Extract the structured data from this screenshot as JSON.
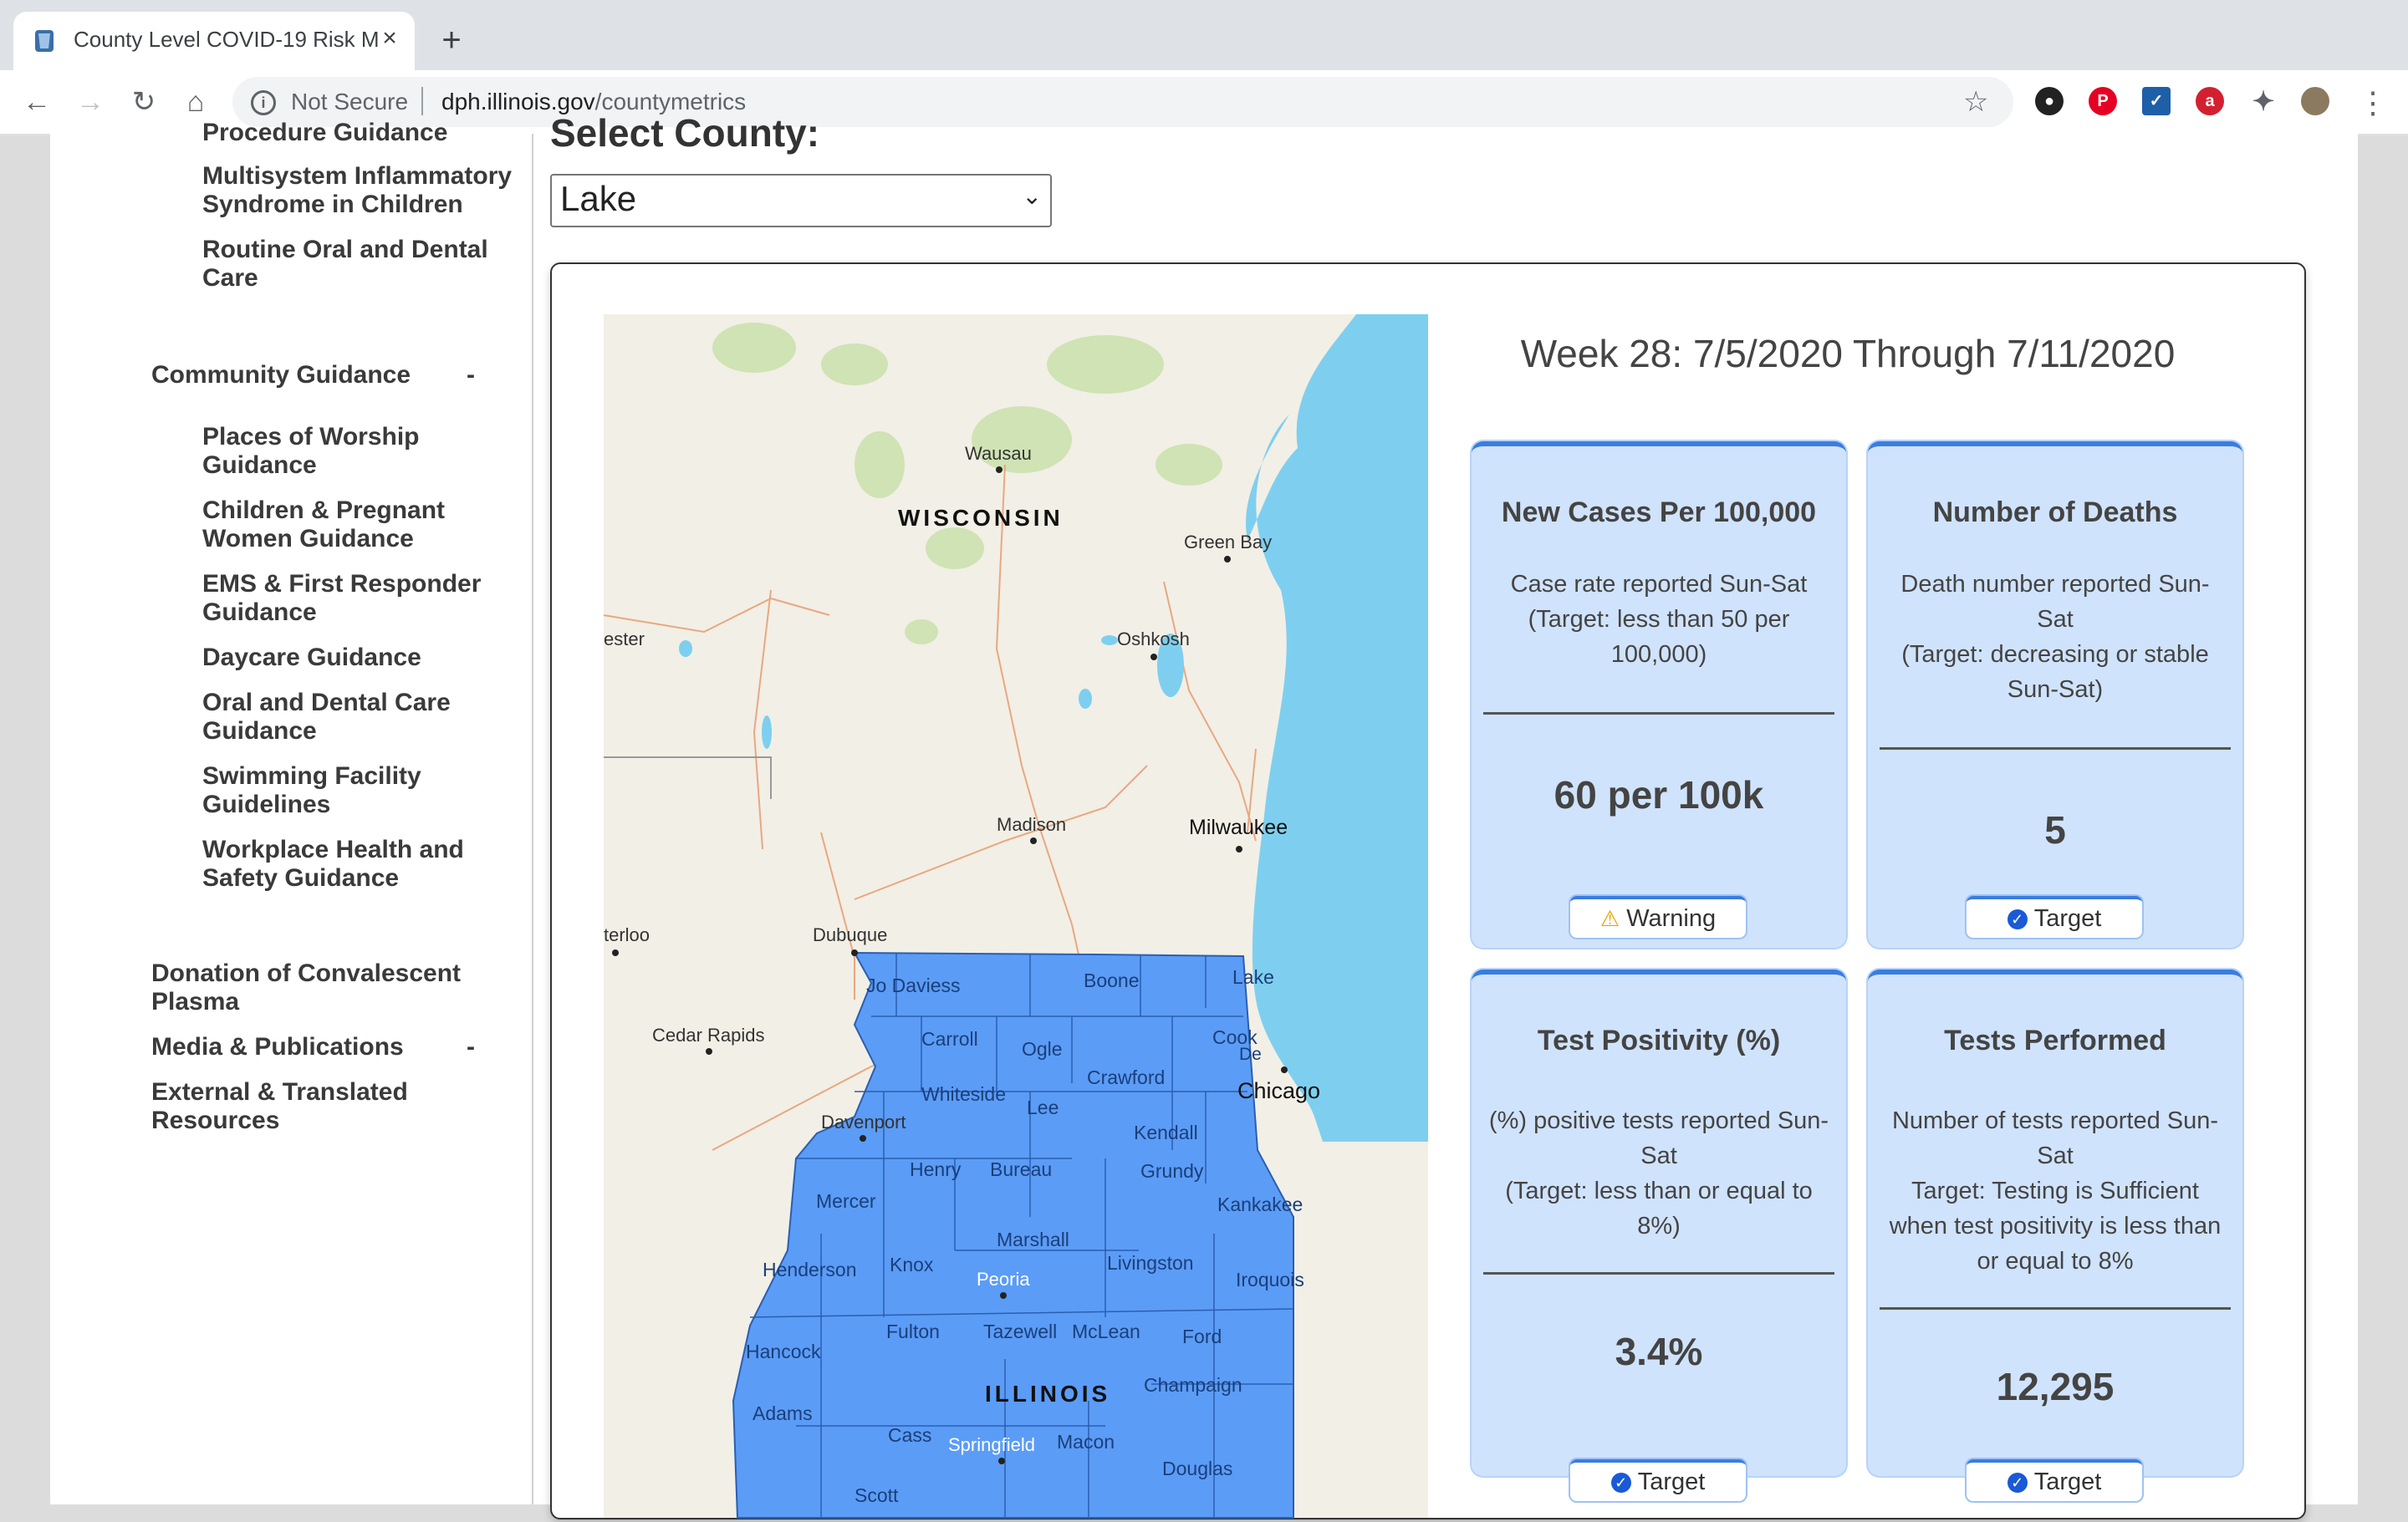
{
  "browser": {
    "tab_title": "County Level COVID-19 Risk M",
    "not_secure": "Not Secure",
    "url_host": "dph.illinois.gov",
    "url_path": "/countymetrics"
  },
  "sidebar": {
    "partial_top": "Procedure Guidance",
    "items_top": [
      "Multisystem Inflammatory Syndrome in Children",
      "Routine Oral and Dental Care"
    ],
    "community": {
      "label": "Community Guidance",
      "toggle": "-"
    },
    "community_items": [
      "Places of Worship Guidance",
      "Children & Pregnant Women Guidance",
      "EMS & First Responder Guidance",
      "Daycare Guidance",
      "Oral and Dental Care Guidance",
      "Swimming Facility Guidelines",
      "Workplace Health and Safety Guidance"
    ],
    "plasma": "Donation of Convalescent Plasma",
    "media": {
      "label": "Media & Publications",
      "toggle": "-"
    },
    "external": "External & Translated Resources"
  },
  "content": {
    "select_label": "Select County:",
    "selected_county": "Lake",
    "week_title": "Week 28: 7/5/2020 Through 7/11/2020"
  },
  "map": {
    "state_labels": [
      "WISCONSIN",
      "ILLINOIS"
    ],
    "cities": [
      "Wausau",
      "Green Bay",
      "Oshkosh",
      "Madison",
      "Milwaukee",
      "Dubuque",
      "Cedar Rapids",
      "Davenport",
      "Peoria",
      "Springfield",
      "Chicago",
      "ester",
      "terloo"
    ],
    "counties": [
      "Jo Daviess",
      "Boone",
      "Lake",
      "Carroll",
      "Ogle",
      "Cook",
      "De",
      "Whiteside",
      "Lee",
      "Crawford",
      "Kendall",
      "Henry",
      "Bureau",
      "Grundy",
      "Mercer",
      "Kankakee",
      "Marshall",
      "Henderson",
      "Knox",
      "Livingston",
      "Iroquois",
      "Fulton",
      "Tazewell",
      "McLean",
      "Ford",
      "Hancock",
      "Champaign",
      "Adams",
      "Cass",
      "Macon",
      "Douglas",
      "Scott"
    ],
    "colors": {
      "water": "#7ecfef",
      "land": "#f2efe6",
      "county_fill": "#5b9cf6",
      "county_stroke": "#2a5fb0",
      "park": "#cfe3b4"
    }
  },
  "cards": [
    {
      "title": "New Cases Per 100,000",
      "desc": "Case rate reported Sun-Sat (Target: less than 50 per 100,000)",
      "value": "60 per 100k",
      "status": "Warning",
      "status_icon": "warning-icon"
    },
    {
      "title": "Number of Deaths",
      "desc": "Death number reported Sun-Sat\n(Target: decreasing or stable Sun-Sat)",
      "value": "5",
      "status": "Target",
      "status_icon": "check-icon"
    },
    {
      "title": "Test Positivity (%)",
      "desc": "(%) positive tests reported Sun-Sat\n(Target: less than or equal to 8%)",
      "value": "3.4%",
      "status": "Target",
      "status_icon": "check-icon"
    },
    {
      "title": "Tests Performed",
      "desc": "Number of tests reported Sun-Sat\nTarget: Testing is Sufficient when test positivity is less than or equal to 8%",
      "value": "12,295",
      "status": "Target",
      "status_icon": "check-icon"
    }
  ]
}
